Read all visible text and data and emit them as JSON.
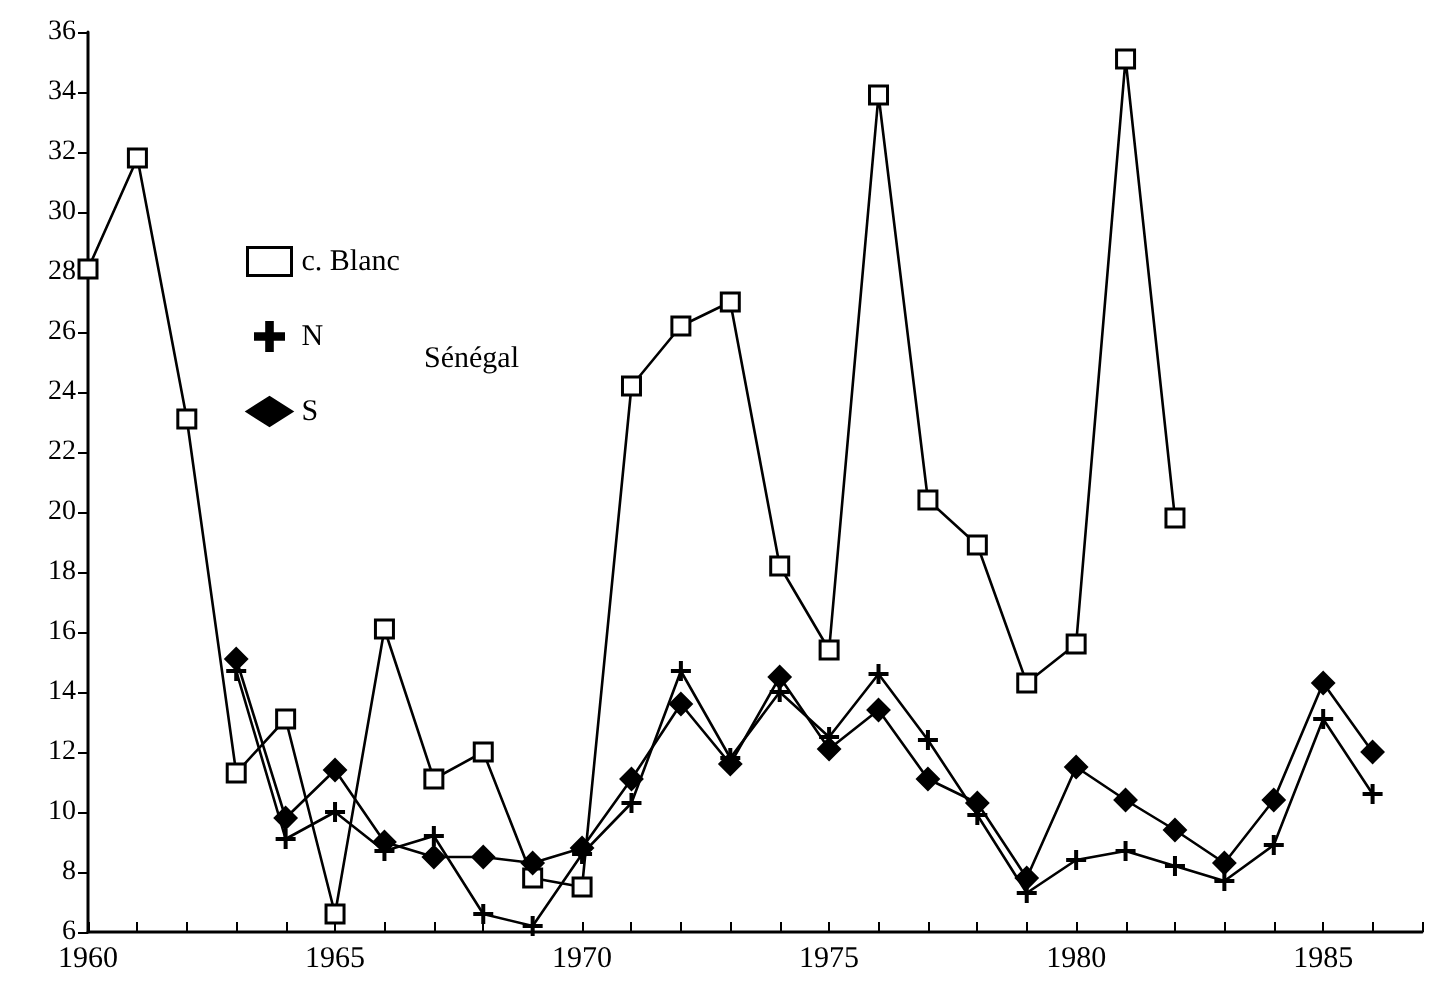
{
  "chart_data": {
    "type": "line",
    "x": [
      1960,
      1961,
      1962,
      1963,
      1964,
      1965,
      1966,
      1967,
      1968,
      1969,
      1970,
      1971,
      1972,
      1973,
      1974,
      1975,
      1976,
      1977,
      1978,
      1979,
      1980,
      1981,
      1982,
      1983,
      1984,
      1985,
      1986
    ],
    "series": [
      {
        "name": "c. Blanc",
        "color": "#000000",
        "marker": "square",
        "values": [
          28.1,
          31.8,
          23.1,
          11.3,
          13.1,
          6.6,
          16.1,
          11.1,
          12.0,
          7.8,
          7.5,
          24.2,
          26.2,
          27.0,
          18.2,
          15.4,
          33.9,
          20.4,
          18.9,
          14.3,
          15.6,
          35.1,
          19.8,
          null,
          null,
          null,
          null
        ]
      },
      {
        "name": "N",
        "color": "#000000",
        "marker": "cross",
        "values": [
          null,
          null,
          null,
          14.7,
          9.1,
          10.0,
          8.7,
          9.2,
          6.6,
          6.2,
          8.6,
          10.3,
          14.7,
          11.8,
          14.0,
          12.5,
          14.6,
          12.4,
          9.9,
          7.3,
          8.4,
          8.7,
          8.2,
          7.7,
          8.9,
          13.1,
          10.6
        ]
      },
      {
        "name": "S",
        "color": "#000000",
        "marker": "diamond",
        "values": [
          null,
          null,
          null,
          15.1,
          9.8,
          11.4,
          9.0,
          8.5,
          8.5,
          8.3,
          8.8,
          11.1,
          13.6,
          11.6,
          14.5,
          12.1,
          13.4,
          11.1,
          10.3,
          7.8,
          11.5,
          10.4,
          9.4,
          8.3,
          10.4,
          14.3,
          12.0
        ]
      }
    ],
    "annotations": [
      "Sénégal"
    ],
    "xlim": [
      1960,
      1987
    ],
    "xticks": [
      1960,
      {
        "value": 1961,
        "label": null
      },
      {
        "value": 1962,
        "label": null
      },
      {
        "value": 1963,
        "label": null
      },
      {
        "value": 1964,
        "label": null
      },
      1965,
      {
        "value": 1966,
        "label": null
      },
      {
        "value": 1967,
        "label": null
      },
      {
        "value": 1968,
        "label": null
      },
      {
        "value": 1969,
        "label": null
      },
      1970,
      {
        "value": 1971,
        "label": null
      },
      {
        "value": 1972,
        "label": null
      },
      {
        "value": 1973,
        "label": null
      },
      {
        "value": 1974,
        "label": null
      },
      1975,
      {
        "value": 1976,
        "label": null
      },
      {
        "value": 1977,
        "label": null
      },
      {
        "value": 1978,
        "label": null
      },
      {
        "value": 1979,
        "label": null
      },
      1980,
      {
        "value": 1981,
        "label": null
      },
      {
        "value": 1982,
        "label": null
      },
      {
        "value": 1983,
        "label": null
      },
      {
        "value": 1984,
        "label": null
      },
      1985,
      {
        "value": 1986,
        "label": null
      },
      {
        "value": 1987,
        "label": null
      }
    ],
    "ylim": [
      6,
      36
    ],
    "yticks": [
      6,
      8,
      10,
      12,
      14,
      16,
      18,
      20,
      22,
      24,
      26,
      28,
      30,
      32,
      34,
      36
    ],
    "grid": false,
    "legend": "top left",
    "line_style": "solid"
  }
}
